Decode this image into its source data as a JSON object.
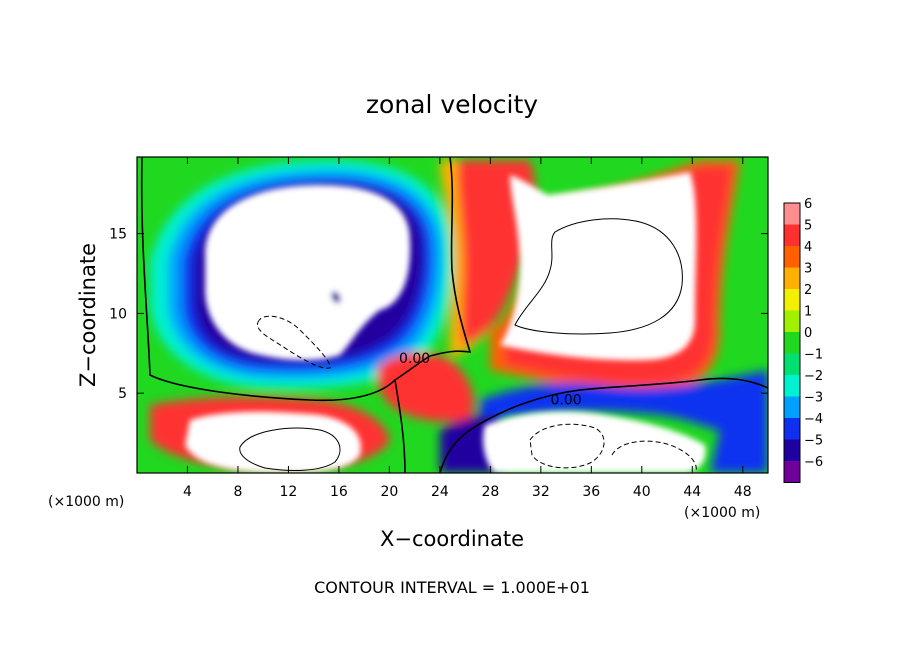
{
  "chart_data": {
    "type": "heatmap",
    "title": "zonal velocity",
    "xlabel": "X−coordinate",
    "ylabel": "Z−coordinate",
    "x_unit_left": "(×1000 m)",
    "x_unit_right": "(×1000 m)",
    "xlim": [
      0,
      50
    ],
    "ylim": [
      0,
      19.8
    ],
    "x_ticks": [
      4,
      8,
      12,
      16,
      20,
      24,
      28,
      32,
      36,
      40,
      44,
      48
    ],
    "y_ticks": [
      5,
      10,
      15
    ],
    "colorbar": {
      "levels": [
        6,
        5,
        4,
        3,
        2,
        1,
        0,
        -1,
        -2,
        -3,
        -4,
        -5,
        -6
      ],
      "labels": [
        "6",
        "5",
        "4",
        "3",
        "2",
        "1",
        "0",
        "−1",
        "−2",
        "−3",
        "−4",
        "−5",
        "−6"
      ],
      "colors": [
        "#ff8f8f",
        "#ff3030",
        "#ff6000",
        "#ffb000",
        "#f2f000",
        "#a0f000",
        "#20d820",
        "#00e070",
        "#00f0d0",
        "#00a0ff",
        "#1030f0",
        "#2000a0",
        "#70009a"
      ]
    },
    "contour_labels": [
      {
        "text": "0.00",
        "x": 22.0,
        "y": 7.2
      },
      {
        "text": "0.00",
        "x": 34.0,
        "y": 4.6
      }
    ],
    "annotation": "CONTOUR INTERVAL = 1.000E+01"
  }
}
